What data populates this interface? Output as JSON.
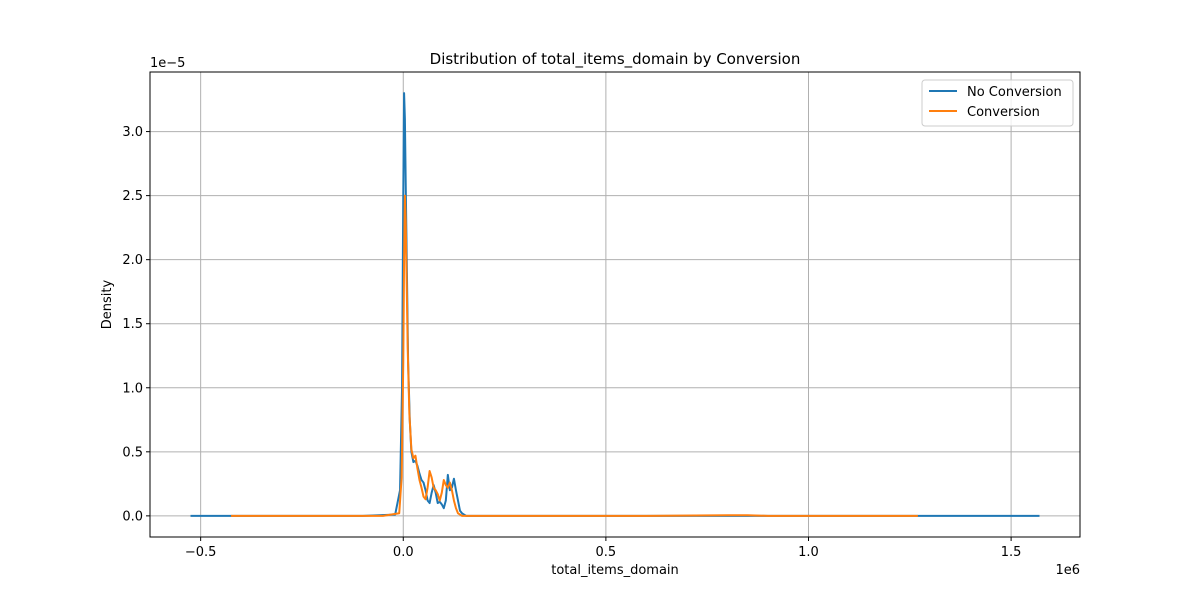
{
  "chart_data": {
    "type": "line",
    "title": "Distribution of total_items_domain by Conversion",
    "xlabel": "total_items_domain",
    "ylabel": "Density",
    "x_offset_label": "1e6",
    "y_offset_label": "1e−5",
    "x_scale": 1000000,
    "y_scale": 1e-05,
    "xlim": [
      -0.625,
      1.67
    ],
    "ylim": [
      -0.165,
      3.465
    ],
    "xticks": [
      -0.5,
      0.0,
      0.5,
      1.0,
      1.5
    ],
    "xtick_labels": [
      "−0.5",
      "0.0",
      "0.5",
      "1.0",
      "1.5"
    ],
    "yticks": [
      0.0,
      0.5,
      1.0,
      1.5,
      2.0,
      2.5,
      3.0
    ],
    "ytick_labels": [
      "0.0",
      "0.5",
      "1.0",
      "1.5",
      "2.0",
      "2.5",
      "3.0"
    ],
    "grid": true,
    "legend_position": "top-right",
    "series": [
      {
        "name": "No Conversion",
        "color": "#1f77b4",
        "x": [
          -0.525,
          -0.3,
          -0.1,
          -0.02,
          -0.008,
          -0.003,
          0.0,
          0.002,
          0.004,
          0.006,
          0.009,
          0.012,
          0.016,
          0.02,
          0.025,
          0.03,
          0.035,
          0.04,
          0.045,
          0.05,
          0.055,
          0.06,
          0.065,
          0.07,
          0.075,
          0.08,
          0.085,
          0.09,
          0.095,
          0.1,
          0.105,
          0.11,
          0.115,
          0.12,
          0.125,
          0.13,
          0.135,
          0.14,
          0.145,
          0.15,
          0.155,
          0.16,
          0.165,
          0.17,
          0.175,
          0.18,
          0.185,
          0.19,
          0.2,
          0.3,
          0.6,
          1.0,
          1.3,
          1.57
        ],
        "y": [
          0.0,
          0.0,
          0.0,
          0.01,
          0.2,
          1.0,
          2.5,
          3.3,
          3.1,
          2.6,
          1.9,
          1.2,
          0.75,
          0.5,
          0.42,
          0.43,
          0.39,
          0.33,
          0.28,
          0.26,
          0.2,
          0.12,
          0.1,
          0.18,
          0.24,
          0.18,
          0.1,
          0.11,
          0.09,
          0.06,
          0.12,
          0.32,
          0.2,
          0.22,
          0.29,
          0.2,
          0.12,
          0.04,
          0.02,
          0.01,
          0.0,
          0.0,
          0.0,
          0.0,
          0.0,
          0.0,
          0.0,
          0.0,
          0.0,
          0.0,
          0.0,
          0.0,
          0.0,
          0.0
        ]
      },
      {
        "name": "Conversion",
        "color": "#ff7f0e",
        "x": [
          -0.425,
          -0.2,
          -0.05,
          -0.01,
          -0.004,
          0.0,
          0.002,
          0.004,
          0.006,
          0.008,
          0.011,
          0.015,
          0.02,
          0.025,
          0.03,
          0.035,
          0.04,
          0.045,
          0.05,
          0.055,
          0.06,
          0.065,
          0.07,
          0.075,
          0.08,
          0.085,
          0.09,
          0.095,
          0.1,
          0.105,
          0.11,
          0.115,
          0.12,
          0.125,
          0.13,
          0.135,
          0.14,
          0.145,
          0.15,
          0.155,
          0.16,
          0.165,
          0.17,
          0.175,
          0.18,
          0.185,
          0.19,
          0.2,
          0.3,
          0.6,
          0.8,
          0.85,
          0.9,
          1.0,
          1.27
        ],
        "y": [
          0.0,
          0.0,
          0.0,
          0.02,
          0.3,
          1.2,
          2.0,
          2.5,
          2.3,
          1.9,
          1.3,
          0.8,
          0.52,
          0.45,
          0.47,
          0.37,
          0.28,
          0.22,
          0.15,
          0.13,
          0.22,
          0.35,
          0.3,
          0.22,
          0.2,
          0.17,
          0.12,
          0.18,
          0.28,
          0.24,
          0.22,
          0.26,
          0.2,
          0.12,
          0.06,
          0.02,
          0.01,
          0.0,
          0.0,
          0.0,
          0.0,
          0.0,
          0.0,
          0.0,
          0.0,
          0.0,
          0.0,
          0.0,
          0.0,
          0.0,
          0.005,
          0.005,
          0.0,
          0.0,
          0.0
        ]
      }
    ]
  }
}
